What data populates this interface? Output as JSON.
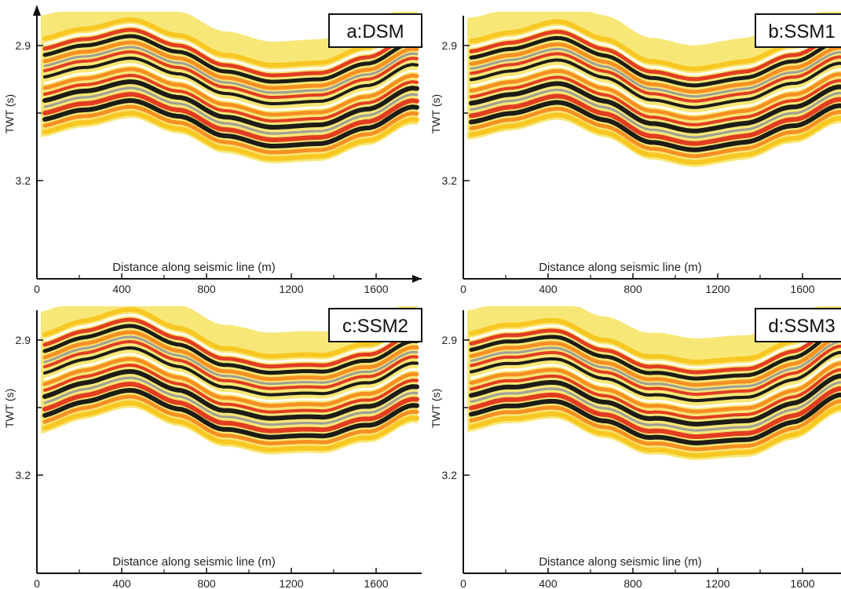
{
  "figure": {
    "panels": [
      {
        "id": "a",
        "label": "a:DSM",
        "ylabel": "TWT (s)",
        "ytick_labels": [
          "2.9",
          "3.2"
        ],
        "xtick_labels": [
          "0",
          "400",
          "800",
          "1200",
          "1600"
        ],
        "caption": "Distance along seismic line (m)"
      },
      {
        "id": "b",
        "label": "b:SSM1",
        "ylabel": "TWT (s)",
        "ytick_labels": [
          "2.9",
          "3.2"
        ],
        "xtick_labels": [
          "0",
          "400",
          "800",
          "1200",
          "1600"
        ],
        "caption": "Distance along seismic line (m)"
      },
      {
        "id": "c",
        "label": "c:SSM2",
        "ylabel": "TWT (s)",
        "ytick_labels": [
          "2.9",
          "3.2"
        ],
        "xtick_labels": [
          "0",
          "400",
          "800",
          "1200",
          "1600"
        ],
        "caption": "Distance along seismic line (m)"
      },
      {
        "id": "d",
        "label": "d:SSM3",
        "ylabel": "TWT (s)",
        "ytick_labels": [
          "2.9",
          "3.2"
        ],
        "xtick_labels": [
          "0",
          "400",
          "800",
          "1200",
          "1600"
        ],
        "caption": "Distance along seismic line (m)"
      }
    ],
    "colors": {
      "background_band": "#f7e777",
      "trough": "#111111",
      "peak_red": "#e0341c",
      "peak_orange": "#f58b1f",
      "peak_yellow": "#f8c51e",
      "grey": "#9a9a9a",
      "white_band": "#ffffff"
    }
  }
}
